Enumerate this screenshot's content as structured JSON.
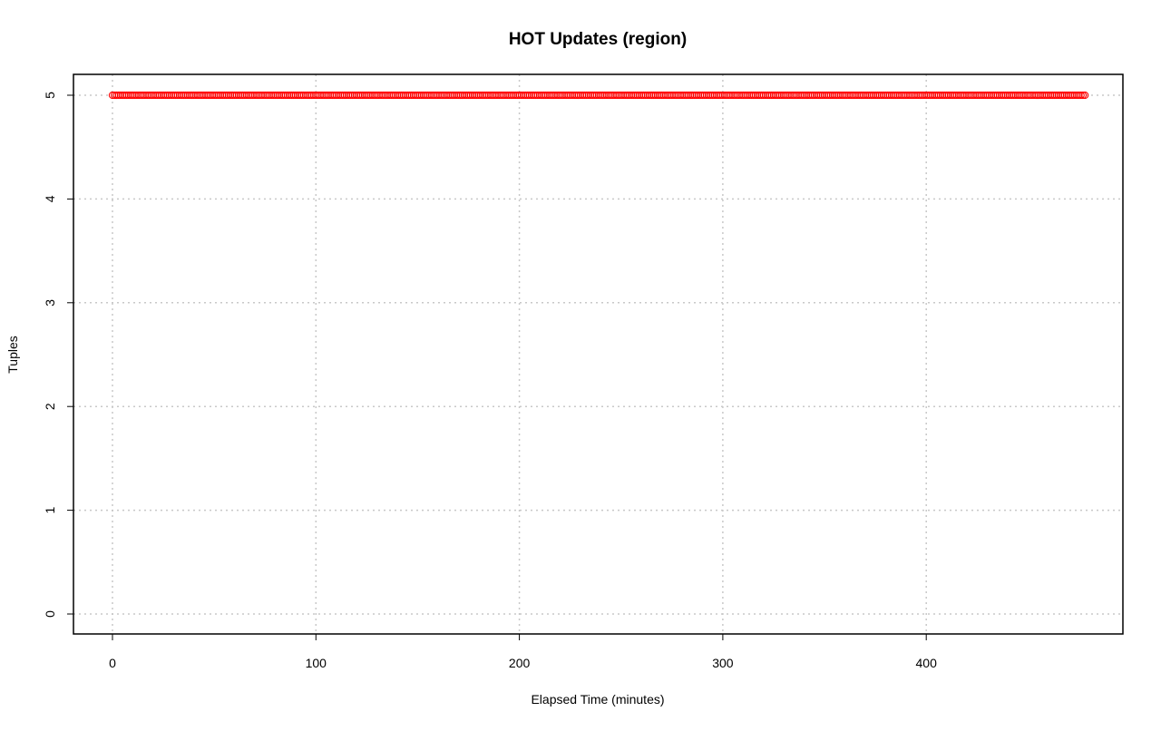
{
  "chart_data": {
    "type": "scatter",
    "title": "HOT Updates (region)",
    "xlabel": "Elapsed Time (minutes)",
    "ylabel": "Tuples",
    "xlim": [
      0,
      478
    ],
    "ylim": [
      0,
      5
    ],
    "x_ticks": [
      0,
      100,
      200,
      300,
      400
    ],
    "y_ticks": [
      0,
      1,
      2,
      3,
      4,
      5
    ],
    "grid": true,
    "series": [
      {
        "x_start": 0,
        "x_end": 478,
        "x_step": 1,
        "y": 5
      }
    ],
    "colors": {
      "points": "#ff0000",
      "grid": "#c8c8c8",
      "frame": "#000000"
    }
  }
}
